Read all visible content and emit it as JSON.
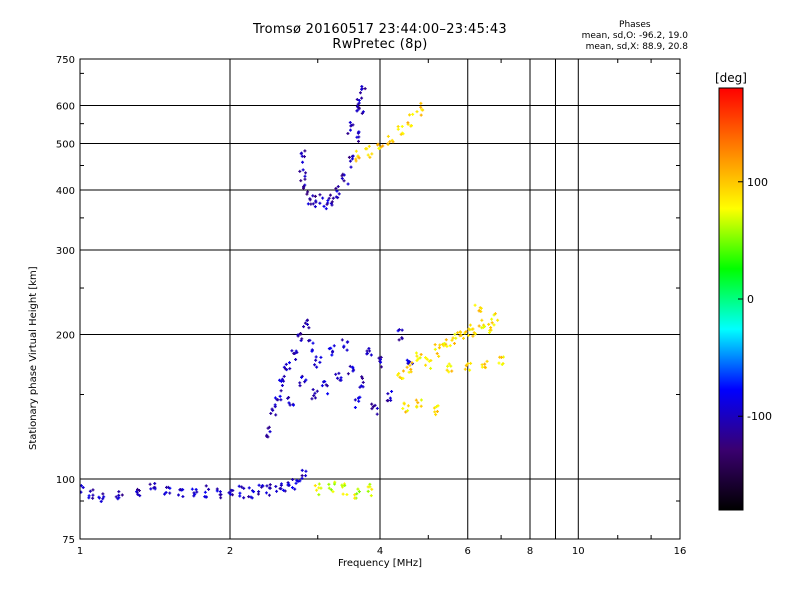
{
  "title": {
    "line1": "Tromsø 20160517 23:44:00–23:45:43",
    "line2": "RwPretec (8p)"
  },
  "phases_box": {
    "header": "Phases",
    "line_o": "mean, sd,O: -96.2, 19.0",
    "line_x": "mean, sd,X:  88.9, 20.8"
  },
  "colorbar": {
    "unit_label": "[deg]",
    "ticks": [
      {
        "value": 100,
        "label": "100"
      },
      {
        "value": 0,
        "label": "0"
      },
      {
        "value": -100,
        "label": "-100"
      }
    ],
    "range": [
      -180,
      180
    ],
    "colors": [
      "#000000",
      "#3a0070",
      "#0000ff",
      "#00ffff",
      "#00ff00",
      "#ffff00",
      "#ff8000",
      "#ff0000"
    ]
  },
  "chart_data": {
    "type": "scatter",
    "title": "Tromsø 20160517 23:44:00–23:45:43",
    "subtitle": "RwPretec (8p)",
    "xlabel": "Frequency [MHz]",
    "ylabel": "Stationary phase Virtual Height [km]",
    "x_scale": "log",
    "y_scale": "log",
    "xlim": [
      1,
      16
    ],
    "ylim": [
      75,
      750
    ],
    "x_ticks": [
      1,
      2,
      4,
      6,
      8,
      10,
      16
    ],
    "x_tick_labels": [
      "1",
      "2",
      "4",
      "6",
      "8",
      "10",
      "16"
    ],
    "y_ticks": [
      75,
      100,
      200,
      300,
      400,
      500,
      600,
      750
    ],
    "y_tick_labels": [
      "75",
      "100",
      "200",
      "300",
      "400",
      "500",
      "600",
      "750"
    ],
    "grid": true,
    "series": [
      {
        "description_ref": "E-layer trace",
        "phase_deg": -100,
        "points": [
          [
            1.0,
            95
          ],
          [
            1.05,
            93
          ],
          [
            1.1,
            92
          ],
          [
            1.2,
            93
          ],
          [
            1.3,
            94
          ],
          [
            1.4,
            95
          ],
          [
            1.5,
            94
          ],
          [
            1.6,
            94
          ],
          [
            1.7,
            95
          ],
          [
            1.8,
            94
          ],
          [
            1.9,
            94
          ],
          [
            2.0,
            94
          ],
          [
            2.1,
            94
          ],
          [
            2.2,
            94
          ],
          [
            2.3,
            95
          ],
          [
            2.4,
            95
          ],
          [
            2.5,
            96
          ],
          [
            2.6,
            97
          ],
          [
            2.7,
            98
          ],
          [
            2.8,
            102
          ]
        ]
      },
      {
        "description_ref": "low F-layer cloud O",
        "phase_deg": -100,
        "points": [
          [
            2.4,
            125
          ],
          [
            2.45,
            140
          ],
          [
            2.5,
            150
          ],
          [
            2.55,
            160
          ],
          [
            2.6,
            170
          ],
          [
            2.65,
            145
          ],
          [
            2.7,
            180
          ],
          [
            2.75,
            200
          ],
          [
            2.8,
            160
          ],
          [
            2.85,
            210
          ],
          [
            2.9,
            190
          ],
          [
            2.95,
            150
          ],
          [
            3.0,
            175
          ],
          [
            3.1,
            155
          ],
          [
            3.2,
            185
          ],
          [
            3.3,
            165
          ],
          [
            3.4,
            190
          ],
          [
            3.5,
            170
          ],
          [
            3.6,
            145
          ],
          [
            3.7,
            160
          ],
          [
            3.8,
            185
          ],
          [
            3.9,
            140
          ],
          [
            4.0,
            175
          ],
          [
            4.2,
            150
          ],
          [
            4.4,
            200
          ],
          [
            4.6,
            175
          ]
        ]
      },
      {
        "description_ref": "low F-layer cloud X",
        "phase_deg": 90,
        "points": [
          [
            4.4,
            165
          ],
          [
            4.6,
            170
          ],
          [
            4.8,
            180
          ],
          [
            5.0,
            175
          ],
          [
            5.2,
            185
          ],
          [
            5.4,
            190
          ],
          [
            5.6,
            195
          ],
          [
            5.8,
            200
          ],
          [
            6.0,
            205
          ],
          [
            6.2,
            200
          ],
          [
            6.4,
            210
          ],
          [
            6.6,
            205
          ],
          [
            6.8,
            215
          ],
          [
            5.5,
            170
          ],
          [
            6.0,
            170
          ],
          [
            6.5,
            172
          ],
          [
            7.0,
            175
          ],
          [
            4.5,
            140
          ],
          [
            4.8,
            145
          ],
          [
            5.2,
            140
          ],
          [
            6.3,
            230
          ]
        ]
      },
      {
        "description_ref": "upper F-layer hook O",
        "phase_deg": -105,
        "points": [
          [
            2.8,
            470
          ],
          [
            2.8,
            430
          ],
          [
            2.85,
            400
          ],
          [
            2.9,
            385
          ],
          [
            3.0,
            380
          ],
          [
            3.1,
            375
          ],
          [
            3.2,
            380
          ],
          [
            3.3,
            395
          ],
          [
            3.4,
            420
          ],
          [
            3.5,
            460
          ],
          [
            3.6,
            520
          ],
          [
            3.65,
            580
          ],
          [
            3.7,
            640
          ],
          [
            3.6,
            600
          ],
          [
            3.5,
            540
          ]
        ]
      },
      {
        "description_ref": "upper F-layer X",
        "phase_deg": 95,
        "points": [
          [
            3.6,
            470
          ],
          [
            3.8,
            480
          ],
          [
            4.0,
            500
          ],
          [
            4.2,
            510
          ],
          [
            4.4,
            530
          ],
          [
            4.6,
            560
          ],
          [
            4.8,
            590
          ]
        ]
      },
      {
        "description_ref": "E-layer X",
        "phase_deg": 70,
        "points": [
          [
            3.0,
            95
          ],
          [
            3.2,
            96
          ],
          [
            3.4,
            95
          ],
          [
            3.6,
            94
          ],
          [
            3.8,
            95
          ]
        ]
      }
    ]
  }
}
